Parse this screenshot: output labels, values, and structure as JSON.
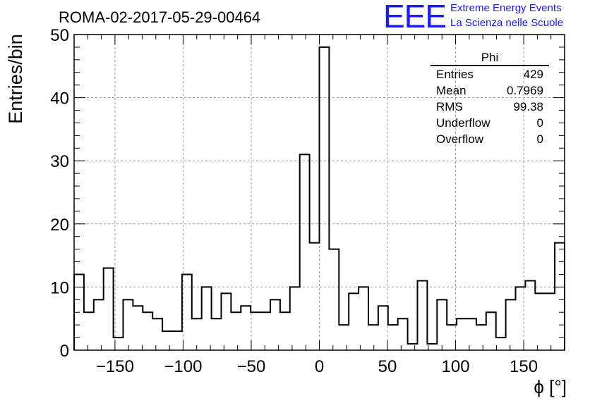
{
  "page": {
    "title": "ROMA-02-2017-05-29-00464"
  },
  "logo": {
    "mark": "EEE",
    "line1": "Extreme Energy Events",
    "line2": "La Scienza nelle Scuole"
  },
  "stats": {
    "title": "Phi",
    "rows": [
      {
        "label": "Entries",
        "value": "429"
      },
      {
        "label": "Mean",
        "value": "0.7969"
      },
      {
        "label": "RMS",
        "value": "99.38"
      },
      {
        "label": "Underflow",
        "value": "0"
      },
      {
        "label": "Overflow",
        "value": "0"
      }
    ]
  },
  "chart_data": {
    "type": "histogram",
    "title": "ROMA-02-2017-05-29-00464",
    "xlabel": "ϕ [°]",
    "ylabel": "Entries/bin",
    "xlim": [
      -180,
      180
    ],
    "ylim": [
      0,
      50
    ],
    "bin_width": 7.2,
    "xticks": [
      -150,
      -100,
      -50,
      0,
      50,
      100,
      150
    ],
    "xtick_labels": [
      "−150",
      "−100",
      "−50",
      "0",
      "50",
      "100",
      "150"
    ],
    "yticks": [
      0,
      10,
      20,
      30,
      40,
      50
    ],
    "ytick_labels": [
      "0",
      "10",
      "20",
      "30",
      "40",
      "50"
    ],
    "grid": true,
    "values": [
      12,
      6,
      8,
      13,
      2,
      8,
      7,
      6,
      5,
      3,
      3,
      12,
      5,
      10,
      5,
      9,
      6,
      7,
      6,
      6,
      8,
      6,
      10,
      31,
      17,
      48,
      16,
      4,
      9,
      10,
      4,
      7,
      4,
      5,
      1,
      11,
      1,
      8,
      4,
      5,
      5,
      4,
      6,
      2,
      8,
      10,
      11,
      9,
      9,
      17
    ]
  }
}
